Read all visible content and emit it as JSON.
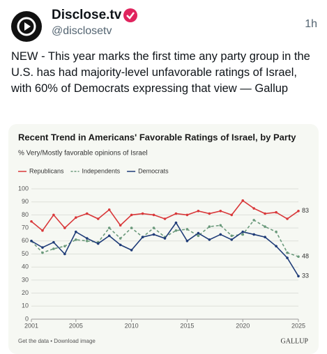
{
  "post": {
    "name": "Disclose.tv",
    "handle": "@disclosetv",
    "time": "1h",
    "text": "NEW - This year marks the first time any party group in the U.S. has had majority-level unfavorable ratings of Israel, with 60% of Democrats expressing that view — Gallup"
  },
  "chart_data": {
    "type": "line",
    "title": "Recent Trend in Americans' Favorable Ratings of Israel, by Party",
    "subtitle": "% Very/Mostly favorable opinions of Israel",
    "x": [
      2001,
      2002,
      2003,
      2004,
      2005,
      2006,
      2007,
      2008,
      2009,
      2010,
      2011,
      2012,
      2013,
      2014,
      2015,
      2016,
      2017,
      2018,
      2019,
      2020,
      2021,
      2022,
      2023,
      2024,
      2025
    ],
    "xlim": [
      2001,
      2025
    ],
    "xticks": [
      2001,
      2005,
      2010,
      2015,
      2020,
      2025
    ],
    "ylim": [
      0,
      100
    ],
    "yticks": [
      0,
      10,
      20,
      30,
      40,
      50,
      60,
      70,
      80,
      90,
      100
    ],
    "grid": true,
    "series": [
      {
        "name": "Republicans",
        "color": "#d9383a",
        "dashed": false,
        "values": [
          75,
          68,
          80,
          70,
          78,
          81,
          77,
          84,
          72,
          80,
          81,
          80,
          77,
          81,
          80,
          83,
          81,
          83,
          80,
          91,
          85,
          81,
          82,
          77,
          83
        ]
      },
      {
        "name": "Independents",
        "color": "#6b9a7c",
        "dashed": true,
        "values": [
          60,
          51,
          54,
          56,
          61,
          60,
          59,
          70,
          62,
          70,
          63,
          70,
          63,
          68,
          69,
          64,
          71,
          72,
          64,
          65,
          76,
          71,
          67,
          51,
          48
        ]
      },
      {
        "name": "Democrats",
        "color": "#1f3c78",
        "dashed": false,
        "values": [
          60,
          55,
          59,
          50,
          67,
          62,
          58,
          64,
          57,
          53,
          63,
          65,
          62,
          74,
          60,
          66,
          61,
          65,
          61,
          67,
          65,
          63,
          56,
          47,
          33
        ]
      }
    ],
    "footer": "Get the data • Download image",
    "source": "GALLUP"
  }
}
